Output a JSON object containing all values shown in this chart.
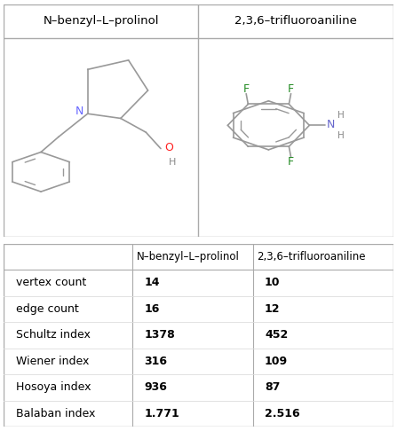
{
  "title1": "N–benzyl–L–prolinol",
  "title2": "2,3,6–trifluoroaniline",
  "table_col1": "N–benzyl–L–prolinol",
  "table_col2": "2,3,6–trifluoroaniline",
  "row_labels": [
    "vertex count",
    "edge count",
    "Schultz index",
    "Wiener index",
    "Hosoya index",
    "Balaban index"
  ],
  "col1_values": [
    "14",
    "16",
    "1378",
    "316",
    "936",
    "1.771"
  ],
  "col2_values": [
    "10",
    "12",
    "452",
    "109",
    "87",
    "2.516"
  ],
  "bg_color": "#ffffff",
  "line_color": "#aaaaaa",
  "bond_color": "#999999",
  "text_color": "#000000",
  "N_color": "#6666ff",
  "O_color": "#ff2222",
  "F_color": "#228B22",
  "NH2_color": "#6666cc",
  "gray_color": "#888888"
}
